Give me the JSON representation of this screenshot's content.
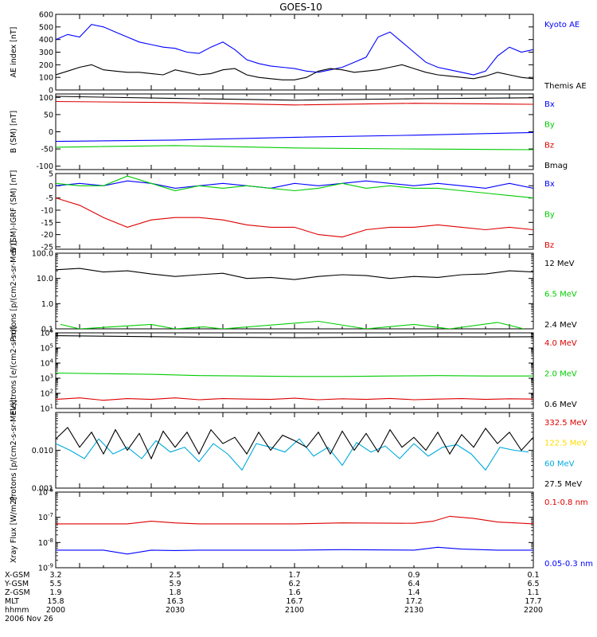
{
  "title": "GOES-10",
  "footer": {
    "rows": [
      {
        "label": "X-GSM",
        "values": [
          "3.2",
          "2.5",
          "1.7",
          "0.9",
          "0.1"
        ]
      },
      {
        "label": "Y-GSM",
        "values": [
          "5.5",
          "5.9",
          "6.2",
          "6.4",
          "6.5"
        ]
      },
      {
        "label": "Z-GSM",
        "values": [
          "1.9",
          "1.8",
          "1.6",
          "1.4",
          "1.1"
        ]
      },
      {
        "label": "MLT",
        "values": [
          "15.8",
          "16.3",
          "16.7",
          "17.2",
          "17.7"
        ]
      },
      {
        "label": "hhmm",
        "values": [
          "2000",
          "2030",
          "2100",
          "2130",
          "2200"
        ]
      }
    ],
    "date": "2006 Nov 26"
  },
  "colors": {
    "black": "#000000",
    "blue": "#0000ff",
    "red": "#dd0000",
    "green": "#00cc00",
    "cyan": "#00aadd",
    "yellow": "#ffdd00"
  },
  "chart_data": [
    {
      "type": "line",
      "ylabel": "AE index [nT]",
      "ylim": [
        0,
        600
      ],
      "log": false,
      "yticks": [
        0,
        100,
        200,
        300,
        400,
        500,
        600
      ],
      "yticklabels": [
        "0",
        "100",
        "200",
        "300",
        "400",
        "500",
        "600"
      ],
      "xlim": [
        2000,
        2200
      ],
      "series": [
        {
          "name": "Kyoto AE",
          "color": "#0000ff",
          "x": [
            2000,
            2005,
            2010,
            2015,
            2020,
            2025,
            2030,
            2035,
            2040,
            2045,
            2050,
            2055,
            2060,
            2065,
            2070,
            2075,
            2080,
            2085,
            2090,
            2095,
            2100,
            2105,
            2110,
            2115,
            2120,
            2125,
            2130,
            2135,
            2140,
            2145,
            2150,
            2155,
            2160,
            2165,
            2170,
            2175,
            2180,
            2185,
            2190,
            2195,
            2200
          ],
          "values": [
            400,
            440,
            420,
            520,
            500,
            460,
            420,
            380,
            360,
            340,
            330,
            300,
            290,
            340,
            380,
            320,
            240,
            210,
            190,
            180,
            170,
            150,
            140,
            160,
            180,
            220,
            260,
            420,
            460,
            380,
            300,
            220,
            180,
            160,
            140,
            120,
            150,
            270,
            340,
            300,
            320
          ]
        },
        {
          "name": "Themis AE",
          "color": "#000000",
          "x": [
            2000,
            2005,
            2010,
            2015,
            2020,
            2025,
            2030,
            2035,
            2040,
            2045,
            2050,
            2055,
            2060,
            2065,
            2070,
            2075,
            2080,
            2085,
            2090,
            2095,
            2100,
            2105,
            2110,
            2115,
            2120,
            2125,
            2130,
            2135,
            2140,
            2145,
            2150,
            2155,
            2160,
            2165,
            2170,
            2175,
            2180,
            2185,
            2190,
            2195,
            2200
          ],
          "values": [
            120,
            150,
            180,
            200,
            160,
            150,
            140,
            140,
            130,
            120,
            160,
            140,
            120,
            130,
            160,
            170,
            120,
            100,
            90,
            80,
            80,
            100,
            150,
            170,
            160,
            140,
            150,
            160,
            180,
            200,
            170,
            140,
            120,
            110,
            100,
            90,
            110,
            140,
            120,
            100,
            90
          ]
        }
      ]
    },
    {
      "type": "line",
      "ylabel": "B (SM) [nT]",
      "ylim": [
        -110,
        110
      ],
      "log": false,
      "yticks": [
        -100,
        -50,
        0,
        50,
        100
      ],
      "yticklabels": [
        "-100",
        "-50",
        "0",
        "50",
        "100"
      ],
      "xlim": [
        2000,
        2200
      ],
      "series": [
        {
          "name": "Bx",
          "color": "#0000ff",
          "x": [
            2000,
            2050,
            2100,
            2150,
            2200
          ],
          "values": [
            -28,
            -24,
            -16,
            -10,
            -2
          ]
        },
        {
          "name": "By",
          "color": "#00cc00",
          "x": [
            2000,
            2050,
            2100,
            2150,
            2200
          ],
          "values": [
            -45,
            -40,
            -47,
            -50,
            -52
          ]
        },
        {
          "name": "Bz",
          "color": "#dd0000",
          "x": [
            2000,
            2050,
            2100,
            2150,
            2200
          ],
          "values": [
            88,
            85,
            78,
            83,
            80
          ]
        },
        {
          "name": "Bmag",
          "color": "#000000",
          "x": [
            2000,
            2050,
            2100,
            2150,
            2200
          ],
          "values": [
            103,
            97,
            92,
            96,
            99
          ]
        }
      ]
    },
    {
      "type": "line",
      "ylabel": "B (SM)-IGRF (SM) [nT]",
      "ylim": [
        -26,
        5
      ],
      "log": false,
      "yticks": [
        -25,
        -20,
        -15,
        -10,
        -5,
        0,
        5
      ],
      "yticklabels": [
        "-25",
        "-20",
        "-15",
        "-10",
        "-5",
        "0",
        "5"
      ],
      "xlim": [
        2000,
        2200
      ],
      "series": [
        {
          "name": "Bx",
          "color": "#0000ff",
          "x": [
            2000,
            2010,
            2020,
            2030,
            2040,
            2050,
            2060,
            2070,
            2080,
            2090,
            2100,
            2110,
            2120,
            2130,
            2140,
            2150,
            2160,
            2170,
            2180,
            2190,
            2200
          ],
          "values": [
            0,
            1,
            0,
            2,
            1,
            -1,
            0,
            1,
            0,
            -1,
            1,
            0,
            1,
            2,
            1,
            0,
            1,
            0,
            -1,
            1,
            -1
          ]
        },
        {
          "name": "By",
          "color": "#00cc00",
          "x": [
            2000,
            2010,
            2020,
            2030,
            2040,
            2050,
            2060,
            2070,
            2080,
            2090,
            2100,
            2110,
            2120,
            2130,
            2140,
            2150,
            2160,
            2170,
            2180,
            2190,
            2200
          ],
          "values": [
            1,
            0,
            0,
            4,
            1,
            -2,
            0,
            -1,
            0,
            -1,
            -2,
            -1,
            1,
            -1,
            0,
            -1,
            -1,
            -2,
            -3,
            -4,
            -5
          ]
        },
        {
          "name": "Bz",
          "color": "#dd0000",
          "x": [
            2000,
            2010,
            2020,
            2030,
            2040,
            2050,
            2060,
            2070,
            2080,
            2090,
            2100,
            2110,
            2120,
            2130,
            2140,
            2150,
            2160,
            2170,
            2180,
            2190,
            2200
          ],
          "values": [
            -5,
            -8,
            -13,
            -17,
            -14,
            -13,
            -13,
            -14,
            -16,
            -17,
            -17,
            -20,
            -21,
            -18,
            -17,
            -17,
            -16,
            -17,
            -18,
            -17,
            -18
          ]
        }
      ]
    },
    {
      "type": "line",
      "ylabel": "Protons [p/(cm2-s-sr-MeV)]",
      "ylim": [
        0.1,
        100
      ],
      "log": true,
      "yticks": [
        0.1,
        1,
        10,
        100
      ],
      "yticklabels": [
        "0.1",
        "1.0",
        "10.0",
        "100.0"
      ],
      "xlim": [
        2000,
        2200
      ],
      "series": [
        {
          "name": "12 MeV",
          "color": "#000000",
          "x": [
            2000,
            2010,
            2020,
            2030,
            2040,
            2050,
            2060,
            2070,
            2080,
            2090,
            2100,
            2110,
            2120,
            2130,
            2140,
            2150,
            2160,
            2170,
            2180,
            2190,
            2200
          ],
          "values": [
            22,
            25,
            18,
            20,
            15,
            12,
            14,
            16,
            10,
            11,
            9,
            12,
            14,
            13,
            10,
            12,
            11,
            14,
            15,
            20,
            18
          ]
        },
        {
          "name": "6.5 MeV",
          "color": "#00cc00",
          "x": [
            2002,
            2010,
            2040,
            2050,
            2062,
            2070,
            2110,
            2130,
            2150,
            2165,
            2185,
            2196
          ],
          "values": [
            0.15,
            0.1,
            0.15,
            0.1,
            0.12,
            0.1,
            0.2,
            0.1,
            0.15,
            0.1,
            0.18,
            0.1
          ]
        },
        {
          "name": "2.4 MeV",
          "color": "#000000",
          "x": [],
          "values": []
        }
      ]
    },
    {
      "type": "line",
      "ylabel": "Electrons [e/(cm2-s-sr)]",
      "ylim": [
        10,
        1000000
      ],
      "log": true,
      "yticks": [
        10,
        100,
        1000,
        10000,
        100000,
        1000000
      ],
      "yticklabels": [
        "10^1",
        "10^2",
        "10^3",
        "10^4",
        "10^5",
        "10^6"
      ],
      "xlim": [
        2000,
        2200
      ],
      "series": [
        {
          "name": "4.0 MeV",
          "color": "#dd0000",
          "x": [
            2000,
            2010,
            2020,
            2030,
            2040,
            2050,
            2060,
            2070,
            2080,
            2090,
            2100,
            2110,
            2120,
            2130,
            2140,
            2150,
            2160,
            2170,
            2180,
            2190,
            2200
          ],
          "values": [
            40,
            50,
            35,
            45,
            40,
            50,
            38,
            45,
            42,
            40,
            48,
            38,
            44,
            40,
            46,
            38,
            42,
            45,
            40,
            44,
            42
          ]
        },
        {
          "name": "2.0 MeV",
          "color": "#00cc00",
          "x": [
            2000,
            2020,
            2040,
            2060,
            2080,
            2100,
            2120,
            2140,
            2160,
            2180,
            2200
          ],
          "values": [
            2200,
            2000,
            1800,
            1500,
            1400,
            1300,
            1300,
            1400,
            1500,
            1400,
            1400
          ]
        },
        {
          "name": "0.6 MeV",
          "color": "#000000",
          "x": [
            2000,
            2020,
            2040,
            2060,
            2080,
            2100,
            2120,
            2140,
            2160,
            2180,
            2200
          ],
          "values": [
            650000,
            600000,
            560000,
            520000,
            500000,
            480000,
            500000,
            520000,
            540000,
            530000,
            550000
          ]
        }
      ]
    },
    {
      "type": "line",
      "ylabel": "Protons [p/(cm2-s-sr-MeV)]",
      "ylim": [
        0.001,
        0.1
      ],
      "log": true,
      "yticks": [
        0.001,
        0.01
      ],
      "yticklabels": [
        "0.001",
        "0.010"
      ],
      "xlim": [
        2000,
        2200
      ],
      "series": [
        {
          "name": "332.5 MeV",
          "color": "#dd0000",
          "x": [],
          "values": []
        },
        {
          "name": "122.5 MeV",
          "color": "#ffdd00",
          "x": [],
          "values": []
        },
        {
          "name": "60 MeV",
          "color": "#00aadd",
          "x": [
            2000,
            2006,
            2012,
            2018,
            2024,
            2030,
            2036,
            2042,
            2048,
            2054,
            2060,
            2066,
            2072,
            2078,
            2084,
            2090,
            2096,
            2102,
            2108,
            2114,
            2120,
            2126,
            2132,
            2138,
            2144,
            2150,
            2156,
            2162,
            2168,
            2174,
            2180,
            2186,
            2192,
            2198
          ],
          "values": [
            0.015,
            0.01,
            0.006,
            0.02,
            0.008,
            0.012,
            0.006,
            0.018,
            0.009,
            0.012,
            0.005,
            0.015,
            0.008,
            0.003,
            0.015,
            0.012,
            0.009,
            0.02,
            0.007,
            0.012,
            0.004,
            0.016,
            0.009,
            0.013,
            0.006,
            0.015,
            0.007,
            0.012,
            0.014,
            0.008,
            0.003,
            0.012,
            0.01,
            0.009
          ]
        },
        {
          "name": "27.5 MeV",
          "color": "#000000",
          "x": [
            2000,
            2005,
            2010,
            2015,
            2020,
            2025,
            2030,
            2035,
            2040,
            2045,
            2050,
            2055,
            2060,
            2065,
            2070,
            2075,
            2080,
            2085,
            2090,
            2095,
            2100,
            2105,
            2110,
            2115,
            2120,
            2125,
            2130,
            2135,
            2140,
            2145,
            2150,
            2155,
            2160,
            2165,
            2170,
            2175,
            2180,
            2185,
            2190,
            2195,
            2200
          ],
          "values": [
            0.02,
            0.04,
            0.012,
            0.03,
            0.008,
            0.035,
            0.01,
            0.028,
            0.006,
            0.032,
            0.012,
            0.03,
            0.008,
            0.035,
            0.015,
            0.022,
            0.008,
            0.03,
            0.01,
            0.025,
            0.018,
            0.012,
            0.03,
            0.008,
            0.032,
            0.01,
            0.028,
            0.009,
            0.035,
            0.012,
            0.022,
            0.01,
            0.03,
            0.008,
            0.026,
            0.012,
            0.038,
            0.015,
            0.03,
            0.01,
            0.022
          ]
        }
      ]
    },
    {
      "type": "line",
      "ylabel": "Xray Flux [W/m2]",
      "ylim": [
        1e-09,
        1e-06
      ],
      "log": true,
      "yticks": [
        1e-09,
        1e-08,
        1e-07,
        1e-06
      ],
      "yticklabels": [
        "10^-9",
        "10^-8",
        "10^-7",
        "10^-6"
      ],
      "xlim": [
        2000,
        2200
      ],
      "series": [
        {
          "name": "0.1-0.8 nm",
          "color": "#dd0000",
          "x": [
            2000,
            2030,
            2040,
            2050,
            2060,
            2100,
            2120,
            2150,
            2158,
            2165,
            2175,
            2185,
            2200
          ],
          "values": [
            5.5e-08,
            5.5e-08,
            7e-08,
            6e-08,
            5.5e-08,
            5.5e-08,
            6e-08,
            5.8e-08,
            7e-08,
            1.1e-07,
            9e-08,
            6.5e-08,
            5.5e-08
          ]
        },
        {
          "name": "0.05-0.3 nm",
          "color": "#0000ff",
          "x": [
            2000,
            2020,
            2030,
            2040,
            2050,
            2060,
            2100,
            2120,
            2150,
            2160,
            2170,
            2185,
            2200
          ],
          "values": [
            5e-09,
            5e-09,
            3.5e-09,
            5e-09,
            4.8e-09,
            5e-09,
            5e-09,
            5.2e-09,
            5e-09,
            6.5e-09,
            5.5e-09,
            5e-09,
            5e-09
          ]
        }
      ]
    }
  ]
}
